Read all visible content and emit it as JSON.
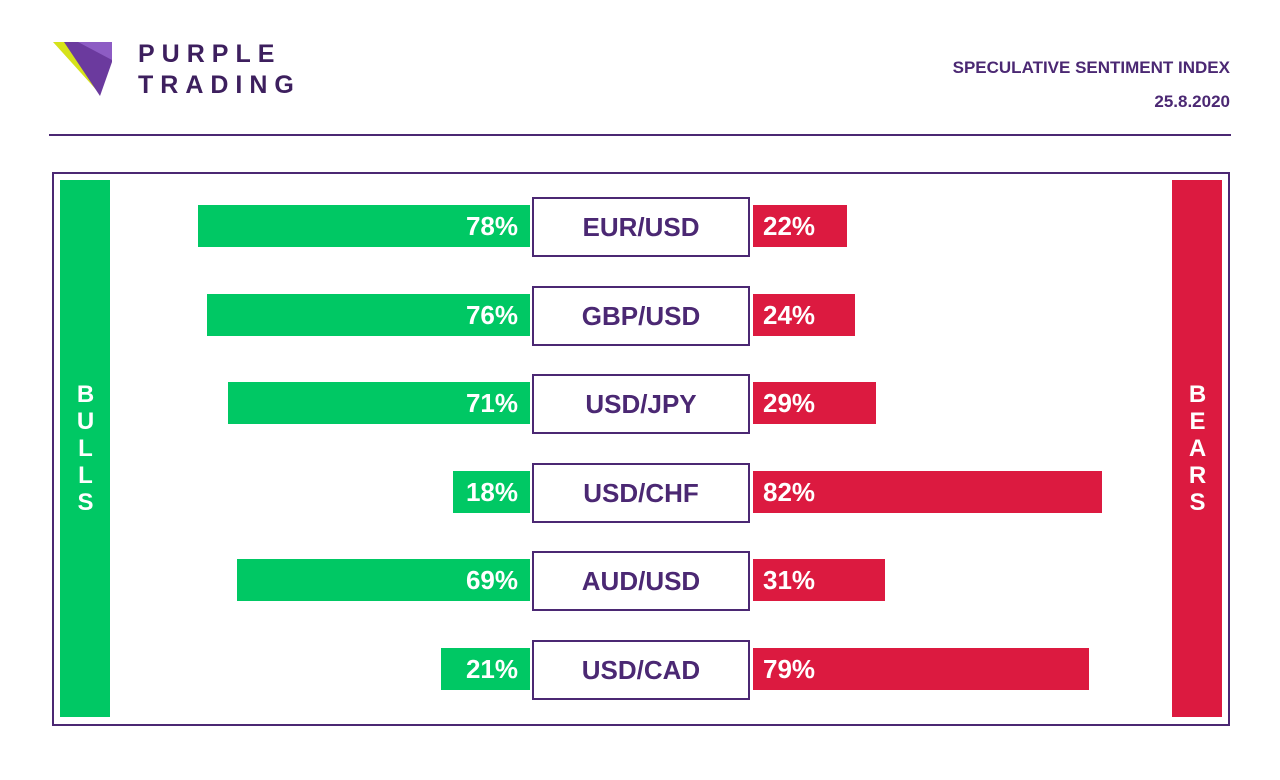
{
  "brand": {
    "line1": "PURPLE",
    "line2": "TRADING"
  },
  "header": {
    "title": "SPECULATIVE SENTIMENT INDEX",
    "date": "25.8.2020"
  },
  "sides": {
    "bulls": "BULLS",
    "bears": "BEARS"
  },
  "colors": {
    "bulls": "#00c864",
    "bears": "#dc1a40",
    "purple": "#4b2873"
  },
  "chart_data": {
    "type": "bar",
    "categories": [
      "EUR/USD",
      "GBP/USD",
      "USD/JPY",
      "USD/CHF",
      "AUD/USD",
      "USD/CAD"
    ],
    "series": [
      {
        "name": "BULLS",
        "values": [
          78,
          76,
          71,
          18,
          69,
          21
        ]
      },
      {
        "name": "BEARS",
        "values": [
          22,
          24,
          29,
          82,
          31,
          79
        ]
      }
    ],
    "labels": {
      "BULLS": [
        "78%",
        "76%",
        "71%",
        "18%",
        "69%",
        "21%"
      ],
      "BEARS": [
        "22%",
        "24%",
        "29%",
        "82%",
        "31%",
        "79%"
      ]
    },
    "value_unit": "%",
    "xlim": [
      0,
      100
    ]
  }
}
